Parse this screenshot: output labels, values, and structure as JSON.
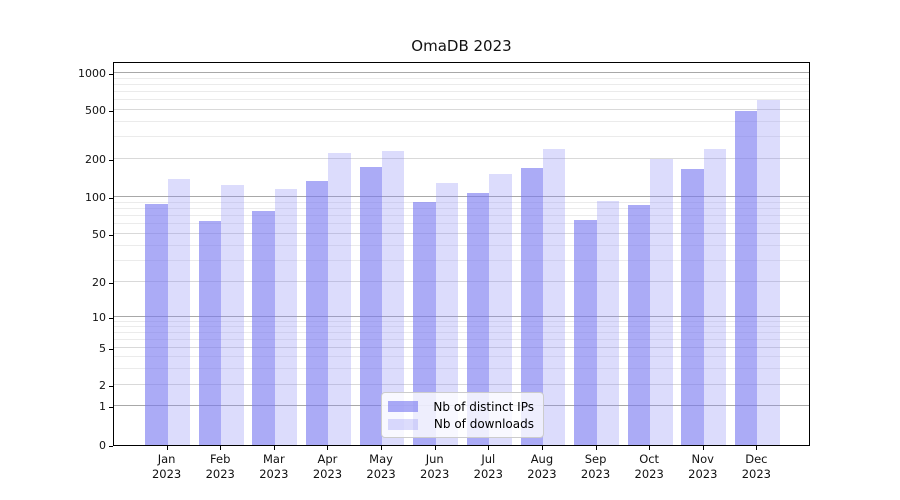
{
  "title": "OmaDB 2023",
  "legend": {
    "items": [
      {
        "label": "Nb of distinct IPs"
      },
      {
        "label": "Nb of downloads"
      }
    ]
  },
  "colors": {
    "ips_bar": "rgba(120,120,240,0.62)",
    "downloads_bar": "rgba(140,140,245,0.30)",
    "grid_major": "#a8a8a8",
    "grid_minor_labeled": "#d9d9d9",
    "grid_minor": "#ebebeb",
    "axis": "#000000"
  },
  "y_axis": {
    "tick_labels": [
      "0",
      "1",
      "2",
      "5",
      "10",
      "20",
      "50",
      "100",
      "200",
      "500",
      "1000"
    ]
  },
  "x_axis": {
    "tick_labels_line1": [
      "Jan",
      "Feb",
      "Mar",
      "Apr",
      "May",
      "Jun",
      "Jul",
      "Aug",
      "Sep",
      "Oct",
      "Nov",
      "Dec"
    ],
    "tick_labels_line2": [
      "2023",
      "2023",
      "2023",
      "2023",
      "2023",
      "2023",
      "2023",
      "2023",
      "2023",
      "2023",
      "2023",
      "2023"
    ]
  },
  "chart_data": {
    "type": "bar",
    "title": "OmaDB 2023",
    "categories": [
      "Jan 2023",
      "Feb 2023",
      "Mar 2023",
      "Apr 2023",
      "May 2023",
      "Jun 2023",
      "Jul 2023",
      "Aug 2023",
      "Sep 2023",
      "Oct 2023",
      "Nov 2023",
      "Dec 2023"
    ],
    "series": [
      {
        "name": "Nb of distinct IPs",
        "values": [
          87,
          63,
          76,
          133,
          172,
          90,
          106,
          167,
          65,
          85,
          165,
          482
        ]
      },
      {
        "name": "Nb of downloads",
        "values": [
          137,
          123,
          115,
          222,
          232,
          128,
          152,
          237,
          92,
          197,
          237,
          595
        ]
      }
    ],
    "xlabel": "",
    "ylabel": "",
    "yscale": "symlog",
    "yticks": [
      0,
      1,
      2,
      5,
      10,
      20,
      50,
      100,
      200,
      500,
      1000
    ],
    "ylim": [
      0,
      1200
    ],
    "grid": "both",
    "legend_position": "lower center inside plot"
  }
}
